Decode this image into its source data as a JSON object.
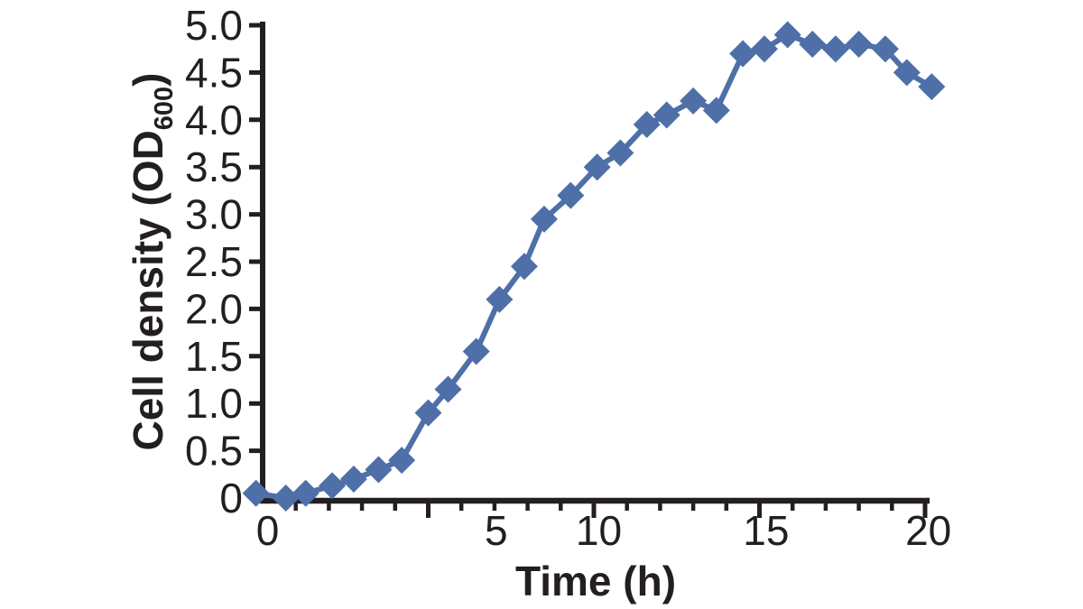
{
  "colors": {
    "ink": "#231f20",
    "series": "#4e6fa8",
    "background": "#ffffff"
  },
  "chart_data": {
    "type": "line",
    "title": "",
    "xlabel": "Time (h)",
    "ylabel": "Cell density (OD600)",
    "ylabel_parts": {
      "main": "Cell density (OD",
      "sub": "600",
      "close": ")"
    },
    "xlim": [
      0,
      20
    ],
    "ylim": [
      0,
      5
    ],
    "grid": false,
    "legend": "none",
    "x_minor_ticks": [
      1,
      2,
      3,
      4,
      5,
      6,
      7,
      8,
      9,
      10,
      11,
      12,
      13,
      14,
      15,
      16,
      17,
      18,
      19,
      20
    ],
    "x_major_ticks": [
      5,
      10,
      15,
      20
    ],
    "x_tick_labels": [
      {
        "text": "0",
        "t": 0.15
      },
      {
        "text": "5",
        "t": 7.05
      },
      {
        "text": "10",
        "t": 10.15
      },
      {
        "text": "15",
        "t": 15.2
      },
      {
        "text": "20",
        "t": 20.1
      }
    ],
    "y_ticks": [
      {
        "label": "0",
        "v": 0.0
      },
      {
        "label": "0.5",
        "v": 0.5
      },
      {
        "label": "1.0",
        "v": 1.0
      },
      {
        "label": "1.5",
        "v": 1.5
      },
      {
        "label": "2.0",
        "v": 2.0
      },
      {
        "label": "2.5",
        "v": 2.5
      },
      {
        "label": "3.0",
        "v": 3.0
      },
      {
        "label": "3.5",
        "v": 3.5
      },
      {
        "label": "4.0",
        "v": 4.0
      },
      {
        "label": "4.5",
        "v": 4.5
      },
      {
        "label": "5.0",
        "v": 5.0
      }
    ],
    "series": [
      {
        "name": "cell-density",
        "marker": "diamond",
        "marker_size": 30,
        "line_width": 6,
        "color": "#4e6fa8",
        "points": [
          [
            -0.2,
            0.05
          ],
          [
            0.7,
            0.0
          ],
          [
            1.3,
            0.05
          ],
          [
            2.1,
            0.13
          ],
          [
            2.75,
            0.2
          ],
          [
            3.5,
            0.3
          ],
          [
            4.2,
            0.4
          ],
          [
            5.0,
            0.9
          ],
          [
            5.6,
            1.15
          ],
          [
            6.45,
            1.55
          ],
          [
            7.15,
            2.1
          ],
          [
            7.9,
            2.45
          ],
          [
            8.5,
            2.95
          ],
          [
            9.3,
            3.2
          ],
          [
            10.1,
            3.5
          ],
          [
            10.8,
            3.65
          ],
          [
            11.6,
            3.95
          ],
          [
            12.2,
            4.05
          ],
          [
            13.0,
            4.2
          ],
          [
            13.7,
            4.1
          ],
          [
            14.5,
            4.7
          ],
          [
            15.15,
            4.75
          ],
          [
            15.85,
            4.9
          ],
          [
            16.6,
            4.8
          ],
          [
            17.3,
            4.75
          ],
          [
            18.0,
            4.8
          ],
          [
            18.8,
            4.75
          ],
          [
            19.45,
            4.5
          ],
          [
            20.2,
            4.35
          ]
        ]
      }
    ]
  }
}
